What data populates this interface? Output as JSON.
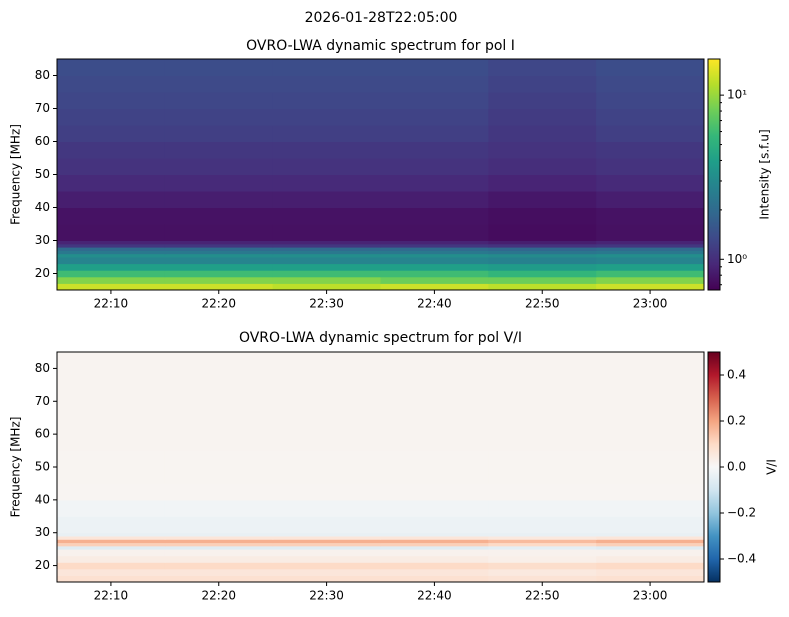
{
  "title": "2026-01-28T22:05:00",
  "chart_data": [
    {
      "type": "heatmap",
      "title": "OVRO-LWA dynamic spectrum for pol I",
      "y_label": "Frequency [MHz]",
      "x_bins": [
        1325,
        1335,
        1345,
        1355,
        1365,
        1375,
        1385
      ],
      "y_bins": [
        15,
        17,
        19,
        21,
        23,
        25,
        26,
        27,
        28,
        29,
        30,
        35,
        40,
        45,
        50,
        55,
        60,
        65,
        70,
        75,
        80,
        85
      ],
      "values": [
        [
          13,
          13,
          12,
          13,
          12,
          13
        ],
        [
          9,
          9,
          9,
          8,
          8,
          9
        ],
        [
          6,
          6,
          6,
          6,
          5.5,
          6
        ],
        [
          4,
          4,
          4,
          4,
          3.8,
          4
        ],
        [
          2.8,
          2.8,
          2.8,
          2.8,
          2.7,
          2.8
        ],
        [
          3.2,
          3.2,
          3.2,
          3.2,
          3.1,
          3.2
        ],
        [
          2.4,
          2.4,
          2.4,
          2.4,
          2.3,
          2.4
        ],
        [
          2,
          2,
          2,
          2,
          1.9,
          2
        ],
        [
          1.1,
          1.1,
          1.1,
          1.1,
          1.05,
          1.1
        ],
        [
          0.9,
          0.9,
          0.9,
          0.9,
          0.85,
          0.9
        ],
        [
          0.75,
          0.75,
          0.75,
          0.75,
          0.72,
          0.75
        ],
        [
          0.76,
          0.76,
          0.76,
          0.76,
          0.73,
          0.76
        ],
        [
          0.85,
          0.85,
          0.85,
          0.85,
          0.8,
          0.85
        ],
        [
          0.95,
          0.95,
          0.95,
          0.95,
          0.9,
          0.95
        ],
        [
          1.05,
          1.05,
          1.05,
          1.05,
          1,
          1.05
        ],
        [
          1.1,
          1.1,
          1.1,
          1.1,
          1.05,
          1.1
        ],
        [
          1.2,
          1.2,
          1.2,
          1.2,
          1.1,
          1.2
        ],
        [
          1.25,
          1.25,
          1.25,
          1.25,
          1.15,
          1.25
        ],
        [
          1.3,
          1.3,
          1.3,
          1.3,
          1.2,
          1.3
        ],
        [
          1.35,
          1.35,
          1.35,
          1.35,
          1.25,
          1.35
        ],
        [
          1.4,
          1.4,
          1.4,
          1.4,
          1.3,
          1.4
        ]
      ],
      "xlim": [
        1325,
        1385
      ],
      "ylim": [
        15,
        85
      ],
      "xticks": [
        {
          "value": 1330,
          "label": "22:10"
        },
        {
          "value": 1340,
          "label": "22:20"
        },
        {
          "value": 1350,
          "label": "22:30"
        },
        {
          "value": 1360,
          "label": "22:40"
        },
        {
          "value": 1370,
          "label": "22:50"
        },
        {
          "value": 1380,
          "label": "23:00"
        }
      ],
      "yticks": [
        20,
        30,
        40,
        50,
        60,
        70,
        80
      ],
      "colorbar": {
        "label": "Intensity [s.f.u]",
        "log": true,
        "clim": [
          0.65,
          16.6
        ],
        "ticks": [
          {
            "value": 1,
            "label": "10⁰"
          },
          {
            "value": 10,
            "label": "10¹"
          }
        ],
        "colormap": [
          "#440154",
          "#482878",
          "#3e4989",
          "#31688e",
          "#26828e",
          "#1f9e89",
          "#35b779",
          "#6ece58",
          "#b5de2b",
          "#fde725"
        ]
      }
    },
    {
      "type": "heatmap",
      "title": "OVRO-LWA dynamic spectrum for pol V/I",
      "y_label": "Frequency [MHz]",
      "x_bins": [
        1325,
        1335,
        1345,
        1355,
        1365,
        1375,
        1385
      ],
      "y_bins": [
        15,
        17,
        19,
        21,
        23,
        25,
        26,
        27,
        28,
        29,
        30,
        35,
        40,
        45,
        50,
        55,
        60,
        65,
        70,
        75,
        80,
        85
      ],
      "values": [
        [
          0.08,
          0.08,
          0.08,
          0.08,
          0.07,
          0.08
        ],
        [
          0.06,
          0.06,
          0.06,
          0.06,
          0.05,
          0.06
        ],
        [
          0.1,
          0.1,
          0.1,
          0.1,
          0.09,
          0.1
        ],
        [
          0.04,
          0.04,
          0.04,
          0.04,
          0.03,
          0.04
        ],
        [
          0.02,
          0.02,
          0.02,
          0.02,
          0.02,
          0.02
        ],
        [
          -0.06,
          -0.06,
          -0.06,
          -0.06,
          -0.05,
          -0.06
        ],
        [
          0.12,
          0.12,
          0.12,
          0.12,
          0.1,
          0.12
        ],
        [
          0.18,
          0.18,
          0.18,
          0.18,
          0.16,
          0.18
        ],
        [
          0.06,
          0.06,
          0.06,
          0.06,
          0.05,
          0.06
        ],
        [
          -0.04,
          -0.04,
          -0.04,
          -0.04,
          -0.04,
          -0.04
        ],
        [
          -0.03,
          -0.03,
          -0.03,
          -0.03,
          -0.03,
          -0.03
        ],
        [
          -0.015,
          -0.015,
          -0.015,
          -0.015,
          -0.015,
          -0.015
        ],
        [
          0.01,
          0.01,
          0.01,
          0.01,
          0.01,
          0.01
        ],
        [
          0.012,
          0.012,
          0.012,
          0.012,
          0.012,
          0.012
        ],
        [
          0.012,
          0.012,
          0.012,
          0.012,
          0.012,
          0.012
        ],
        [
          0.015,
          0.015,
          0.015,
          0.015,
          0.015,
          0.015
        ],
        [
          0.015,
          0.015,
          0.015,
          0.015,
          0.015,
          0.015
        ],
        [
          0.015,
          0.015,
          0.015,
          0.015,
          0.015,
          0.015
        ],
        [
          0.015,
          0.015,
          0.015,
          0.015,
          0.015,
          0.015
        ],
        [
          0.015,
          0.015,
          0.015,
          0.015,
          0.015,
          0.015
        ],
        [
          0.015,
          0.015,
          0.015,
          0.015,
          0.015,
          0.015
        ]
      ],
      "xlim": [
        1325,
        1385
      ],
      "ylim": [
        15,
        85
      ],
      "xticks": [
        {
          "value": 1330,
          "label": "22:10"
        },
        {
          "value": 1340,
          "label": "22:20"
        },
        {
          "value": 1350,
          "label": "22:30"
        },
        {
          "value": 1360,
          "label": "22:40"
        },
        {
          "value": 1370,
          "label": "22:50"
        },
        {
          "value": 1380,
          "label": "23:00"
        }
      ],
      "yticks": [
        20,
        30,
        40,
        50,
        60,
        70,
        80
      ],
      "colorbar": {
        "label": "V/I",
        "log": false,
        "clim": [
          -0.5,
          0.5
        ],
        "ticks": [
          {
            "value": -0.4,
            "label": "−0.4"
          },
          {
            "value": -0.2,
            "label": "−0.2"
          },
          {
            "value": 0,
            "label": "0.0"
          },
          0.2,
          0.4
        ],
        "colormap": [
          "#053061",
          "#2166ac",
          "#4393c3",
          "#92c5de",
          "#d1e5f0",
          "#f7f7f7",
          "#fddbc7",
          "#f4a582",
          "#d6604d",
          "#b2182b",
          "#67001f"
        ]
      }
    }
  ]
}
